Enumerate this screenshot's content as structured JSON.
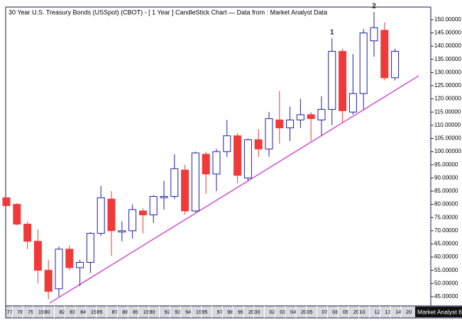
{
  "chart_data": {
    "type": "candlestick",
    "title": "30 Year U.S. Treasury Bonds (USSpot) (CBOT) - [ 1 Year ] CandleStick Chart — Data from : Market Analyst Data",
    "footer": "Market Analyst 6",
    "categories": [
      "77",
      "78",
      "79",
      "1980",
      null,
      "82",
      "83",
      "84",
      "1985",
      null,
      "87",
      "88",
      "89",
      "1990",
      null,
      "92",
      "93",
      "94",
      "1995",
      null,
      "97",
      "98",
      "99",
      "2000",
      null,
      "02",
      "03",
      "04",
      "2005",
      null,
      "07",
      "08",
      "09",
      "2010",
      null,
      "12",
      "13",
      "14",
      "20"
    ],
    "open": [
      82.5,
      80,
      72.5,
      66,
      55,
      48,
      63,
      56,
      58,
      69,
      82,
      69.5,
      70,
      77.5,
      76,
      82.5,
      83,
      93,
      77.5,
      99,
      91.5,
      100,
      106,
      90,
      104.5,
      101,
      112,
      109,
      112,
      114,
      112,
      116,
      138,
      115,
      122,
      142,
      146,
      128,
      null
    ],
    "high": [
      82.5,
      80.5,
      73.5,
      70.5,
      59,
      64,
      64.5,
      59,
      69.5,
      87,
      85,
      73.5,
      80,
      78.5,
      83.5,
      89,
      99,
      95,
      100,
      100,
      101,
      112,
      107,
      105,
      108.5,
      115,
      123,
      117,
      120,
      115,
      121,
      143,
      139,
      137,
      146.5,
      153,
      149,
      139,
      null
    ],
    "low": [
      79.5,
      72,
      63,
      50,
      44,
      45,
      55,
      49,
      54,
      68,
      60.5,
      66,
      67,
      69,
      73,
      78,
      82,
      76,
      77,
      84,
      85,
      98,
      88,
      89,
      98,
      98,
      103,
      104,
      109,
      104,
      106,
      110,
      111,
      114,
      116,
      136,
      127,
      127,
      null
    ],
    "close": [
      79.5,
      72.5,
      66,
      55,
      47,
      63,
      56,
      58,
      69,
      82.5,
      70,
      70,
      78,
      76,
      83,
      83,
      93.5,
      77.5,
      99.5,
      91.5,
      100,
      106,
      91,
      104.5,
      101,
      112.5,
      109,
      112,
      114,
      112.5,
      116,
      138,
      115.5,
      122,
      145,
      147,
      128,
      138,
      null
    ],
    "up_color": "#1f1fa8",
    "down_color": "#f03a3a",
    "ylim": [
      41.5,
      154.8
    ],
    "yticks": [
      {
        "value": 45,
        "label": "45.00000"
      },
      {
        "value": 50,
        "label": "50.00000"
      },
      {
        "value": 55,
        "label": "55.00000"
      },
      {
        "value": 60,
        "label": "60.00000"
      },
      {
        "value": 65,
        "label": "65.00000"
      },
      {
        "value": 70,
        "label": "70.00000"
      },
      {
        "value": 75,
        "label": "75.00000"
      },
      {
        "value": 80,
        "label": "80.00000"
      },
      {
        "value": 85,
        "label": "85.00000"
      },
      {
        "value": 90,
        "label": "90.00000"
      },
      {
        "value": 95,
        "label": "95.00000"
      },
      {
        "value": 100,
        "label": "100.00000"
      },
      {
        "value": 105,
        "label": "105.00000"
      },
      {
        "value": 110,
        "label": "110.00000"
      },
      {
        "value": 115,
        "label": "115.00000"
      },
      {
        "value": 120,
        "label": "120.00000"
      },
      {
        "value": 125,
        "label": "125.00000"
      },
      {
        "value": 130,
        "label": "130.00000"
      },
      {
        "value": 135,
        "label": "135.00000"
      },
      {
        "value": 140,
        "label": "140.00000"
      },
      {
        "value": 145,
        "label": "145.00000"
      },
      {
        "value": 150,
        "label": "150.00000"
      }
    ],
    "annotations": [
      {
        "text": "1",
        "x": "08"
      },
      {
        "text": "2",
        "x": "12"
      }
    ],
    "grid": false
  }
}
